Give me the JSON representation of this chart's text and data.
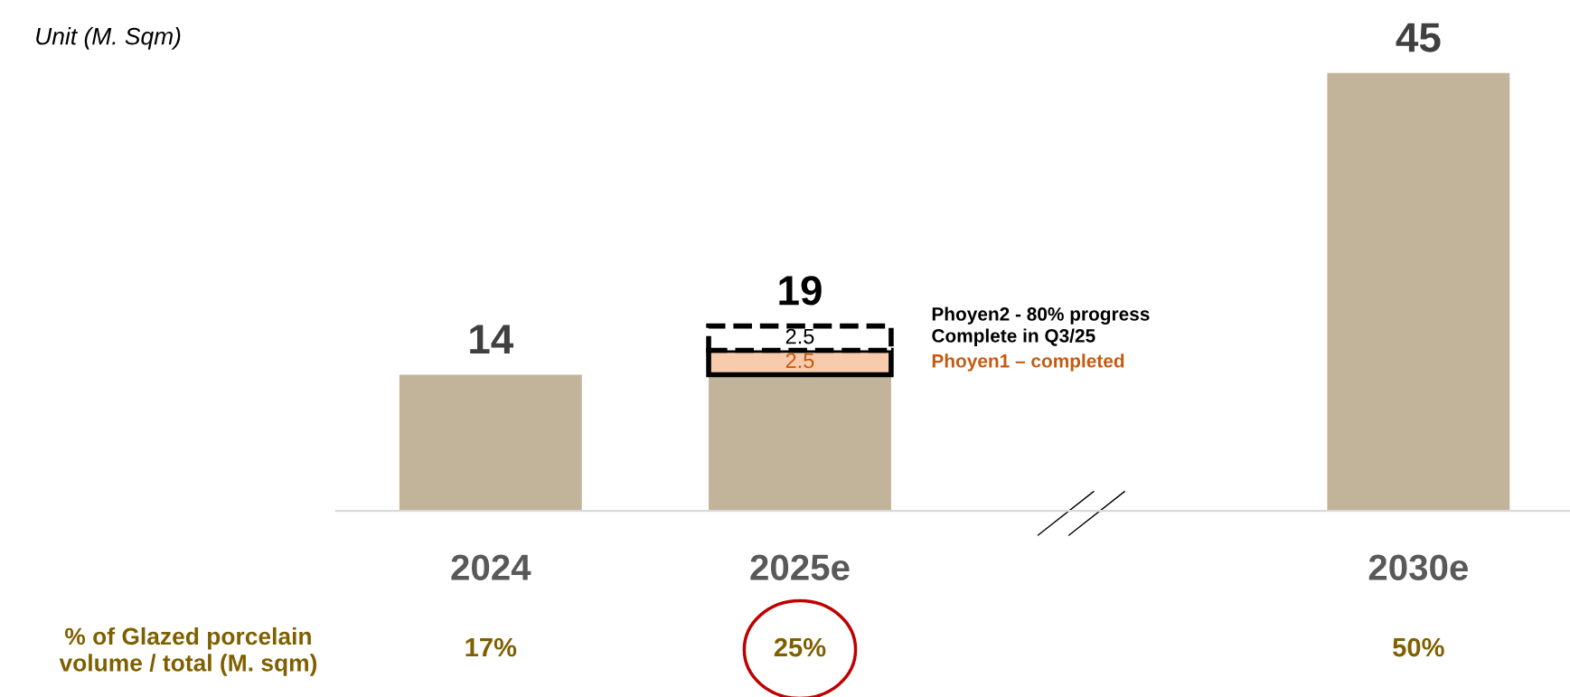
{
  "chart_data": {
    "type": "bar",
    "stacked": true,
    "categories": [
      "2024",
      "2025e",
      null,
      "2030e"
    ],
    "series": [
      {
        "color": "#c2b49a",
        "values": [
          14,
          14,
          null,
          45
        ]
      },
      {
        "name": "Phoyen1 – completed",
        "color": "#f8cbad",
        "values": [
          null,
          2.5,
          null,
          null
        ],
        "value_labels": [
          null,
          "2.5",
          null,
          null
        ]
      },
      {
        "name": "Phoyen2 - 80% progress\nComplete in Q3/25",
        "color": "#ffffff",
        "line_style": "dashed",
        "values": [
          null,
          2.5,
          null,
          null
        ],
        "value_labels": [
          null,
          "2.5",
          null,
          null
        ]
      }
    ],
    "totals": [
      "14",
      "19",
      null,
      "45"
    ],
    "annotations": [
      "Unit (M. Sqm)",
      "% of Glazed porcelain\nvolume / total (M. sqm)",
      "17%",
      "25%",
      "50%"
    ],
    "grid": false,
    "legend": false
  }
}
